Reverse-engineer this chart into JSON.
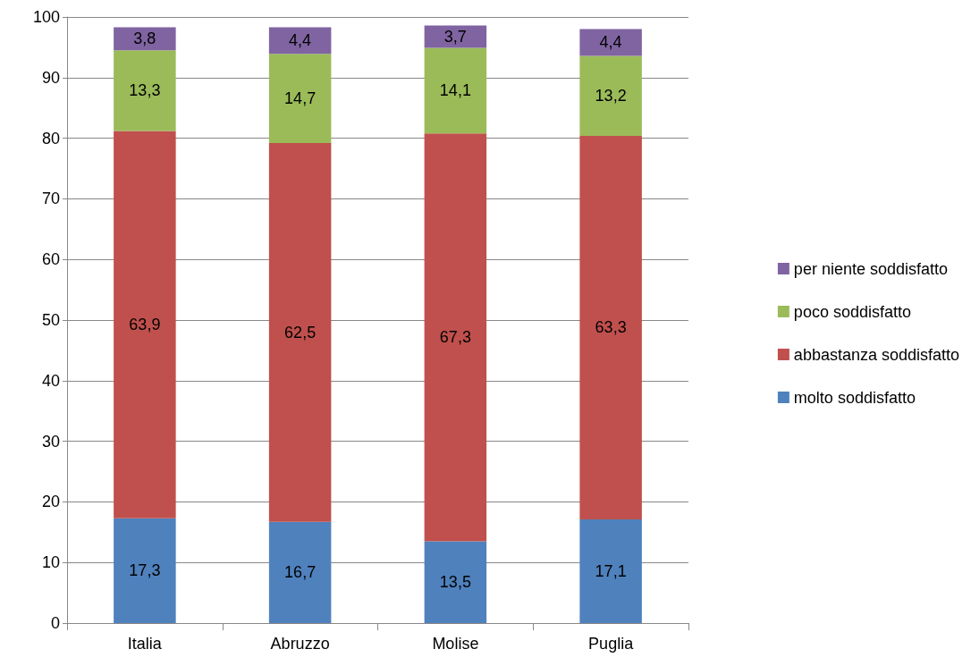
{
  "chart_data": {
    "type": "bar",
    "stacked": true,
    "categories": [
      "Italia",
      "Abruzzo",
      "Molise",
      "Puglia"
    ],
    "series": [
      {
        "name": "molto soddisfatto",
        "color": "#4f81bd",
        "values": [
          17.3,
          16.7,
          13.5,
          17.1
        ],
        "value_labels": [
          "17,3",
          "16,7",
          "13,5",
          "17,1"
        ]
      },
      {
        "name": "abbastanza soddisfatto",
        "color": "#c0504d",
        "values": [
          63.9,
          62.5,
          67.3,
          63.3
        ],
        "value_labels": [
          "63,9",
          "62,5",
          "67,3",
          "63,3"
        ]
      },
      {
        "name": "poco soddisfatto",
        "color": "#9bbb59",
        "values": [
          13.3,
          14.7,
          14.1,
          13.2
        ],
        "value_labels": [
          "13,3",
          "14,7",
          "14,1",
          "13,2"
        ]
      },
      {
        "name": "per niente soddisfatto",
        "color": "#8064a2",
        "values": [
          3.8,
          4.4,
          3.7,
          4.4
        ],
        "value_labels": [
          "3,8",
          "4,4",
          "3,7",
          "4,4"
        ]
      }
    ],
    "ylim": [
      0,
      100
    ],
    "yticks": [
      0,
      10,
      20,
      30,
      40,
      50,
      60,
      70,
      80,
      90,
      100
    ],
    "grid": "y",
    "legend": "right"
  }
}
